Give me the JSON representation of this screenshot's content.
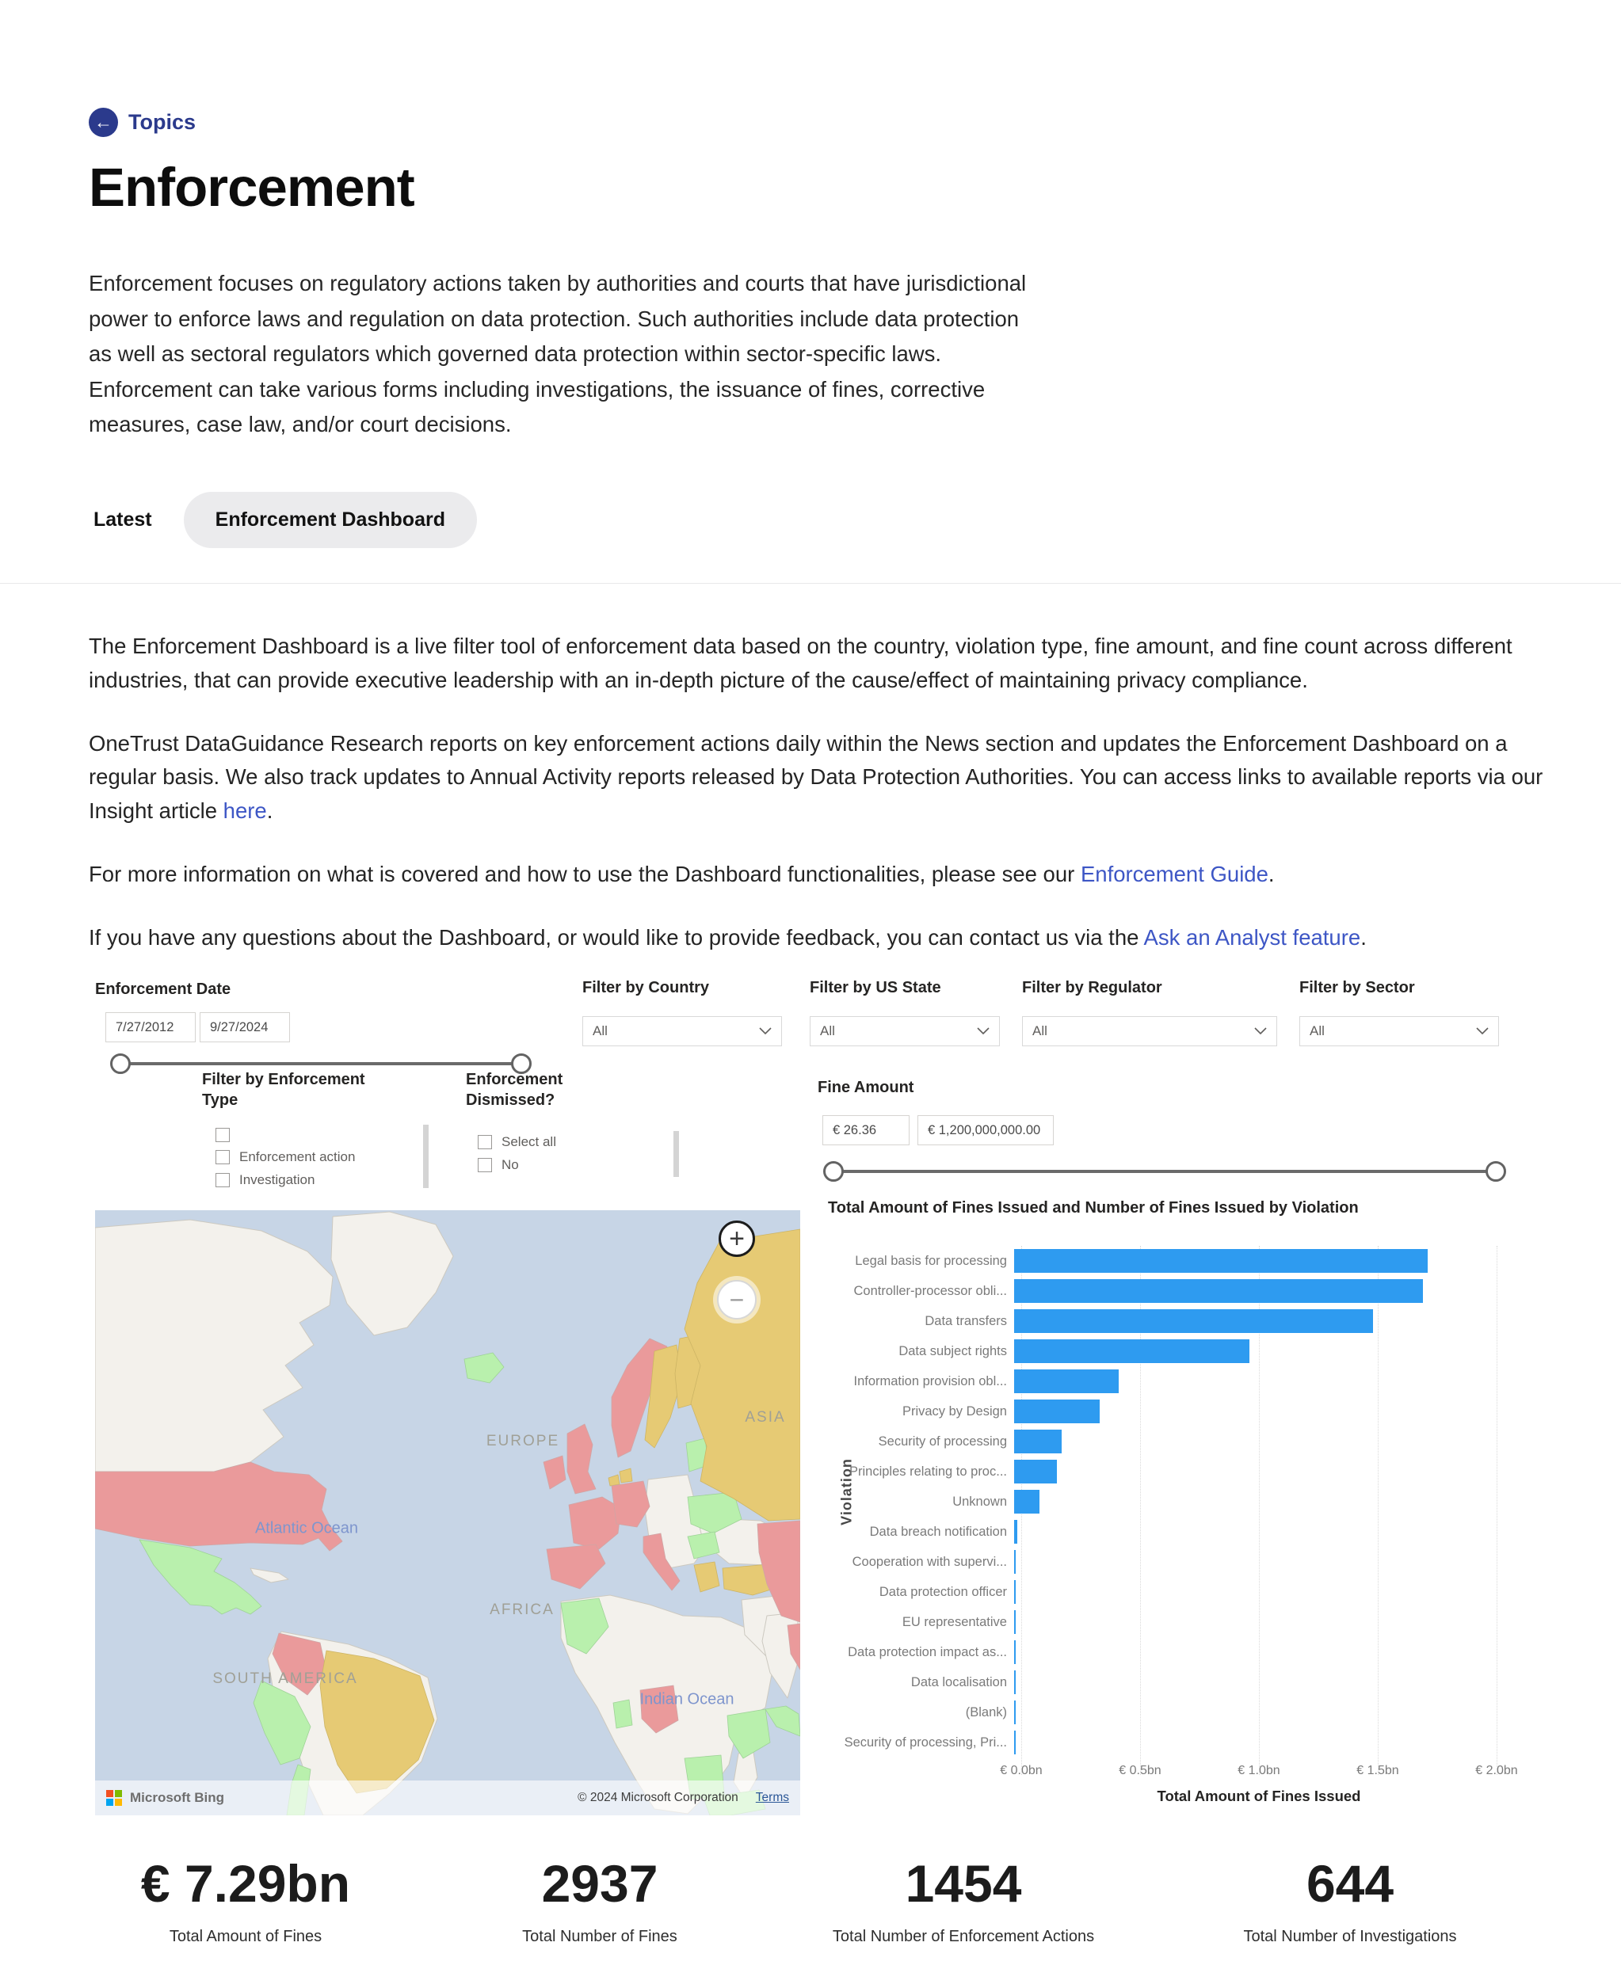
{
  "page": {
    "back_link": "Topics",
    "title": "Enforcement",
    "intro": "Enforcement focuses on regulatory actions taken by authorities and courts that have jurisdictional power to enforce laws and regulation on data protection. Such authorities include data protection as well as sectoral regulators which governed data protection within sector-specific laws. Enforcement can take various forms including investigations, the issuance of fines, corrective measures, case law, and/or court decisions.",
    "tabs": [
      {
        "label": "Latest",
        "active": false
      },
      {
        "label": "Enforcement Dashboard",
        "active": true
      }
    ],
    "paragraphs": [
      {
        "pre": "The Enforcement Dashboard is a live filter tool of enforcement data based on the country, violation type, fine amount, and fine count across different industries, that can provide executive leadership with an in-depth picture of the cause/effect of maintaining privacy compliance.",
        "link": "",
        "post": ""
      },
      {
        "pre": "OneTrust DataGuidance Research reports on key enforcement actions daily within the News section and updates the Enforcement Dashboard on a regular basis. We also track updates to Annual Activity reports released by Data Protection Authorities. You can access links to available reports via our Insight article ",
        "link": "here",
        "post": "."
      },
      {
        "pre": "For more information on what is covered and how to use the Dashboard functionalities, please see our ",
        "link": "Enforcement Guide",
        "post": "."
      },
      {
        "pre": "If you have any questions about the Dashboard, or would like to provide feedback, you can contact us via the ",
        "link": "Ask an Analyst feature",
        "post": "."
      }
    ]
  },
  "filters": {
    "date": {
      "label": "Enforcement Date",
      "start": "7/27/2012",
      "end": "9/27/2024"
    },
    "dropdowns": [
      {
        "label": "Filter by Country",
        "value": "All"
      },
      {
        "label": "Filter by US State",
        "value": "All"
      },
      {
        "label": "Filter by Regulator",
        "value": "All"
      },
      {
        "label": "Filter by Sector",
        "value": "All"
      }
    ],
    "enforcement_type": {
      "label": "Filter by Enforcement Type",
      "options": [
        "",
        "Enforcement action",
        "Investigation"
      ]
    },
    "dismissed": {
      "label": "Enforcement Dismissed?",
      "options": [
        "Select all",
        "No"
      ]
    },
    "fine_amount": {
      "label": "Fine Amount",
      "min": "€ 26.36",
      "max": "€ 1,200,000,000.00"
    }
  },
  "map": {
    "labels": {
      "europe": "EUROPE",
      "asia": "ASIA",
      "africa": "AFRICA",
      "south_america": "SOUTH AMERICA",
      "atlantic": "Atlantic Ocean",
      "indian": "Indian Ocean"
    },
    "zoom_in": "+",
    "zoom_out": "−",
    "attribution": {
      "brand": "Microsoft Bing",
      "copyright": "© 2024 Microsoft Corporation",
      "terms": "Terms"
    },
    "colors": {
      "ocean": "#c7d5e6",
      "land": "#f3f1ec",
      "red": "#ea9a9b",
      "yellow": "#e6ca74",
      "green": "#b9f0ad"
    }
  },
  "chart_data": {
    "type": "bar",
    "orientation": "horizontal",
    "title": "Total Amount of Fines Issued and Number of Fines Issued by Violation",
    "xlabel": "Total Amount of Fines Issued",
    "ylabel": "Violation",
    "unit": "EUR bn",
    "xlim": [
      0,
      2.0
    ],
    "x_ticks": [
      "€ 0.0bn",
      "€ 0.5bn",
      "€ 1.0bn",
      "€ 1.5bn",
      "€ 2.0bn"
    ],
    "grid": true,
    "legend": "none",
    "bar_color": "#2e9bf0",
    "categories": [
      "Legal basis for processing",
      "Controller-processor obli...",
      "Data transfers",
      "Data subject rights",
      "Information provision obl...",
      "Privacy by Design",
      "Security of processing",
      "Principles relating to proc...",
      "Unknown",
      "Data breach notification",
      "Cooperation with supervi...",
      "Data protection officer",
      "EU representative",
      "Data protection impact as...",
      "Data localisation",
      "(Blank)",
      "Security of processing, Pri..."
    ],
    "values": [
      1.74,
      1.72,
      1.51,
      0.99,
      0.44,
      0.36,
      0.2,
      0.18,
      0.105,
      0.012,
      0.005,
      0.004,
      0.003,
      0.003,
      0.002,
      0.002,
      0.002
    ]
  },
  "stats": [
    {
      "value": "€ 7.29bn",
      "label": "Total Amount of Fines"
    },
    {
      "value": "2937",
      "label": "Total Number of Fines"
    },
    {
      "value": "1454",
      "label": "Total Number of Enforcement Actions"
    },
    {
      "value": "644",
      "label": "Total Number of Investigations"
    }
  ]
}
